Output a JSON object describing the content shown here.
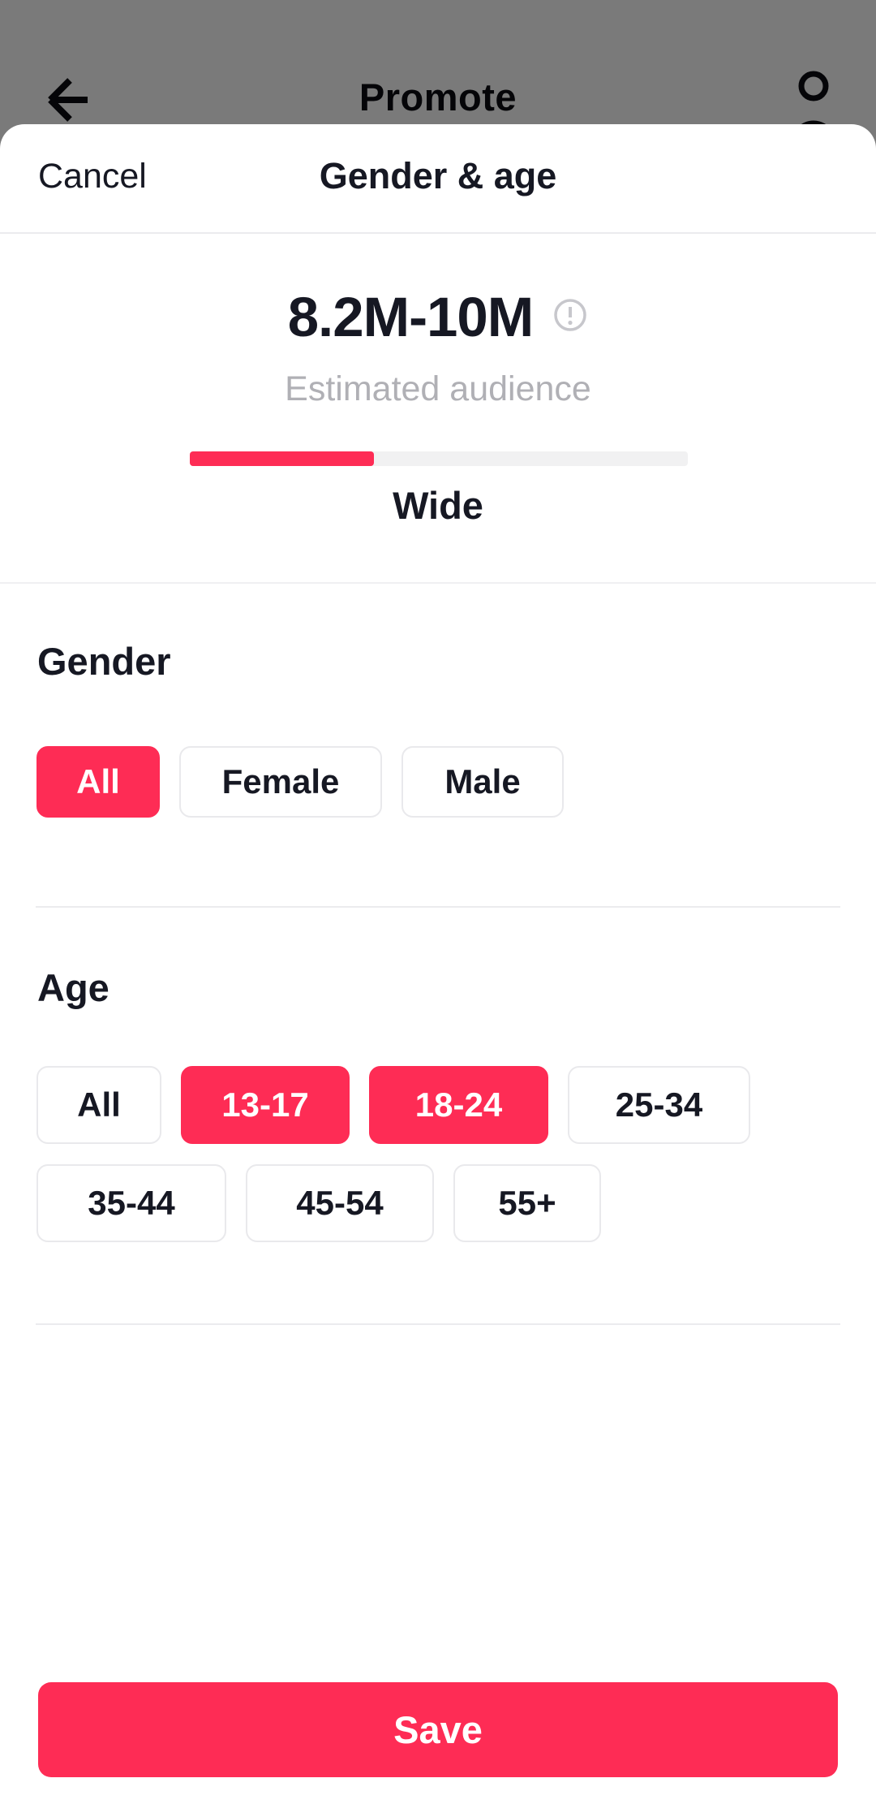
{
  "header": {
    "title": "Promote"
  },
  "icons": {
    "back": "back-arrow",
    "profile": "person-outline",
    "info": "info-circle"
  },
  "sheet": {
    "cancel_label": "Cancel",
    "title": "Gender & age",
    "audience": {
      "value": "8.2M-10M",
      "caption": "Estimated audience",
      "progress_percent": 37,
      "breadth_label": "Wide"
    },
    "gender": {
      "heading": "Gender",
      "options": [
        {
          "label": "All",
          "selected": true
        },
        {
          "label": "Female",
          "selected": false
        },
        {
          "label": "Male",
          "selected": false
        }
      ]
    },
    "age": {
      "heading": "Age",
      "options": [
        {
          "label": "All",
          "selected": false
        },
        {
          "label": "13-17",
          "selected": true
        },
        {
          "label": "18-24",
          "selected": true
        },
        {
          "label": "25-34",
          "selected": false
        },
        {
          "label": "35-44",
          "selected": false
        },
        {
          "label": "45-54",
          "selected": false
        },
        {
          "label": "55+",
          "selected": false
        }
      ]
    },
    "save_label": "Save"
  },
  "colors": {
    "accent": "#FE2C55",
    "text": "#161823",
    "muted_text": "#B0B0B5",
    "chip_border": "#E9E9EC",
    "divider": "#EBEBEE",
    "progress_track": "#F1F1F2"
  }
}
